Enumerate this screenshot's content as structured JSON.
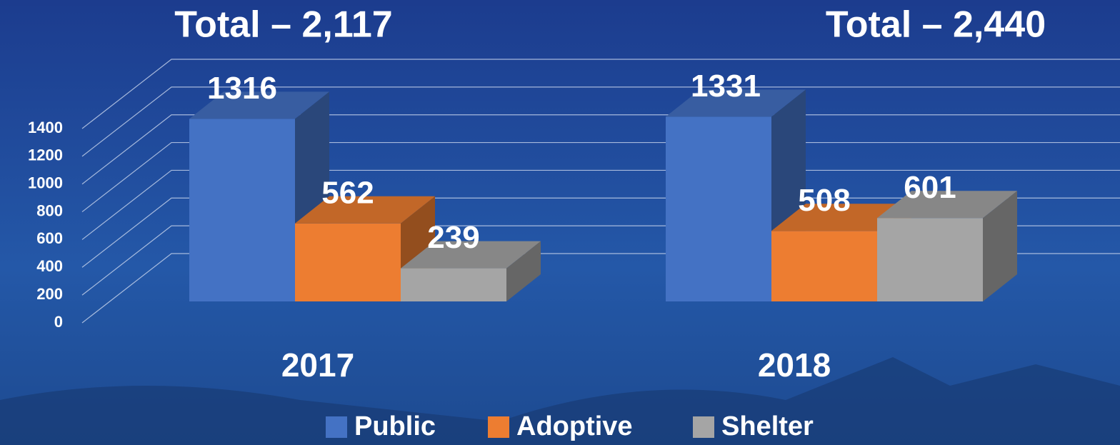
{
  "chart_data": {
    "type": "bar3d",
    "annotations": [
      "Total – 2,117",
      "Total – 2,440"
    ],
    "categories": [
      "2017",
      "2018"
    ],
    "series": [
      {
        "name": "Public",
        "color": "#4472c4",
        "values": [
          1316,
          1331
        ]
      },
      {
        "name": "Adoptive",
        "color": "#ed7d31",
        "values": [
          562,
          508
        ]
      },
      {
        "name": "Shelter",
        "color": "#a5a5a5",
        "values": [
          239,
          601
        ]
      }
    ],
    "ylim": [
      0,
      1400
    ],
    "yticks": [
      0,
      200,
      400,
      600,
      800,
      1000,
      1200,
      1400
    ],
    "grid": true,
    "legend": "bottom"
  }
}
